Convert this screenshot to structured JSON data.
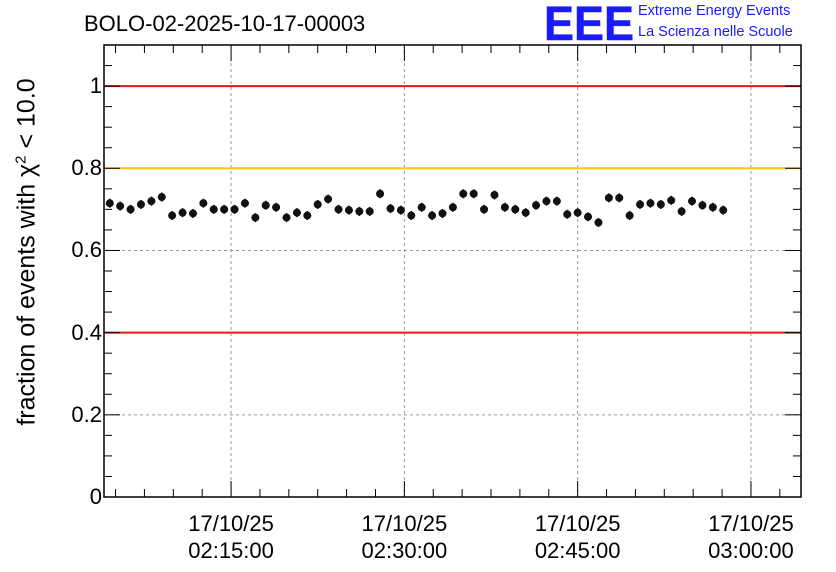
{
  "header": {
    "title": "BOLO-02-2025-10-17-00003",
    "logo_text": "EEE",
    "logo_line1": "Extreme Energy Events",
    "logo_line2": "La Scienza nelle Scuole"
  },
  "chart_data": {
    "type": "scatter",
    "title": "BOLO-02-2025-10-17-00003",
    "xlabel": "",
    "ylabel_prefix": "fraction of events with ",
    "ylabel_symbol": "χ",
    "ylabel_sup": "2",
    "ylabel_suffix": " < 10.0",
    "x_unit": "minutes",
    "xlim": [
      "02:04:00",
      "03:04:20"
    ],
    "ylim": [
      0,
      1.1
    ],
    "grid": true,
    "x_ticks": [
      {
        "value": "02:15:00",
        "date": "17/10/25",
        "time": "02:15:00"
      },
      {
        "value": "02:30:00",
        "date": "17/10/25",
        "time": "02:30:00"
      },
      {
        "value": "02:45:00",
        "date": "17/10/25",
        "time": "02:45:00"
      },
      {
        "value": "03:00:00",
        "date": "17/10/25",
        "time": "03:00:00"
      }
    ],
    "y_ticks": [
      {
        "value": 0,
        "label": "0"
      },
      {
        "value": 0.2,
        "label": "0.2"
      },
      {
        "value": 0.4,
        "label": "0.4"
      },
      {
        "value": 0.6,
        "label": "0.6"
      },
      {
        "value": 0.8,
        "label": "0.8"
      },
      {
        "value": 1.0,
        "label": "1"
      }
    ],
    "reference_lines": [
      {
        "y": 1.0,
        "color": "#e31a1c"
      },
      {
        "y": 0.8,
        "color": "#ffc20e"
      },
      {
        "y": 0.4,
        "color": "#e31a1c"
      }
    ],
    "marker_color": "#111111",
    "y_error": 0.011,
    "x_error_minutes": 0.33,
    "series": [
      {
        "x_start": "02:04:30",
        "x_step_minutes": 0.9,
        "y": [
          0.715,
          0.708,
          0.7,
          0.712,
          0.72,
          0.73,
          0.685,
          0.692,
          0.69,
          0.715,
          0.7,
          0.7,
          0.7,
          0.715,
          0.68,
          0.71,
          0.705,
          0.68,
          0.692,
          0.685,
          0.712,
          0.725,
          0.7,
          0.698,
          0.695,
          0.695,
          0.738,
          0.702,
          0.698,
          0.685,
          0.705,
          0.685,
          0.69,
          0.705,
          0.738,
          0.738,
          0.7,
          0.735,
          0.705,
          0.7,
          0.692,
          0.71,
          0.72,
          0.72,
          0.688,
          0.692,
          0.682,
          0.668,
          0.728,
          0.728,
          0.685,
          0.712,
          0.715,
          0.712,
          0.722,
          0.695,
          0.72,
          0.71,
          0.705,
          0.698
        ]
      }
    ]
  }
}
